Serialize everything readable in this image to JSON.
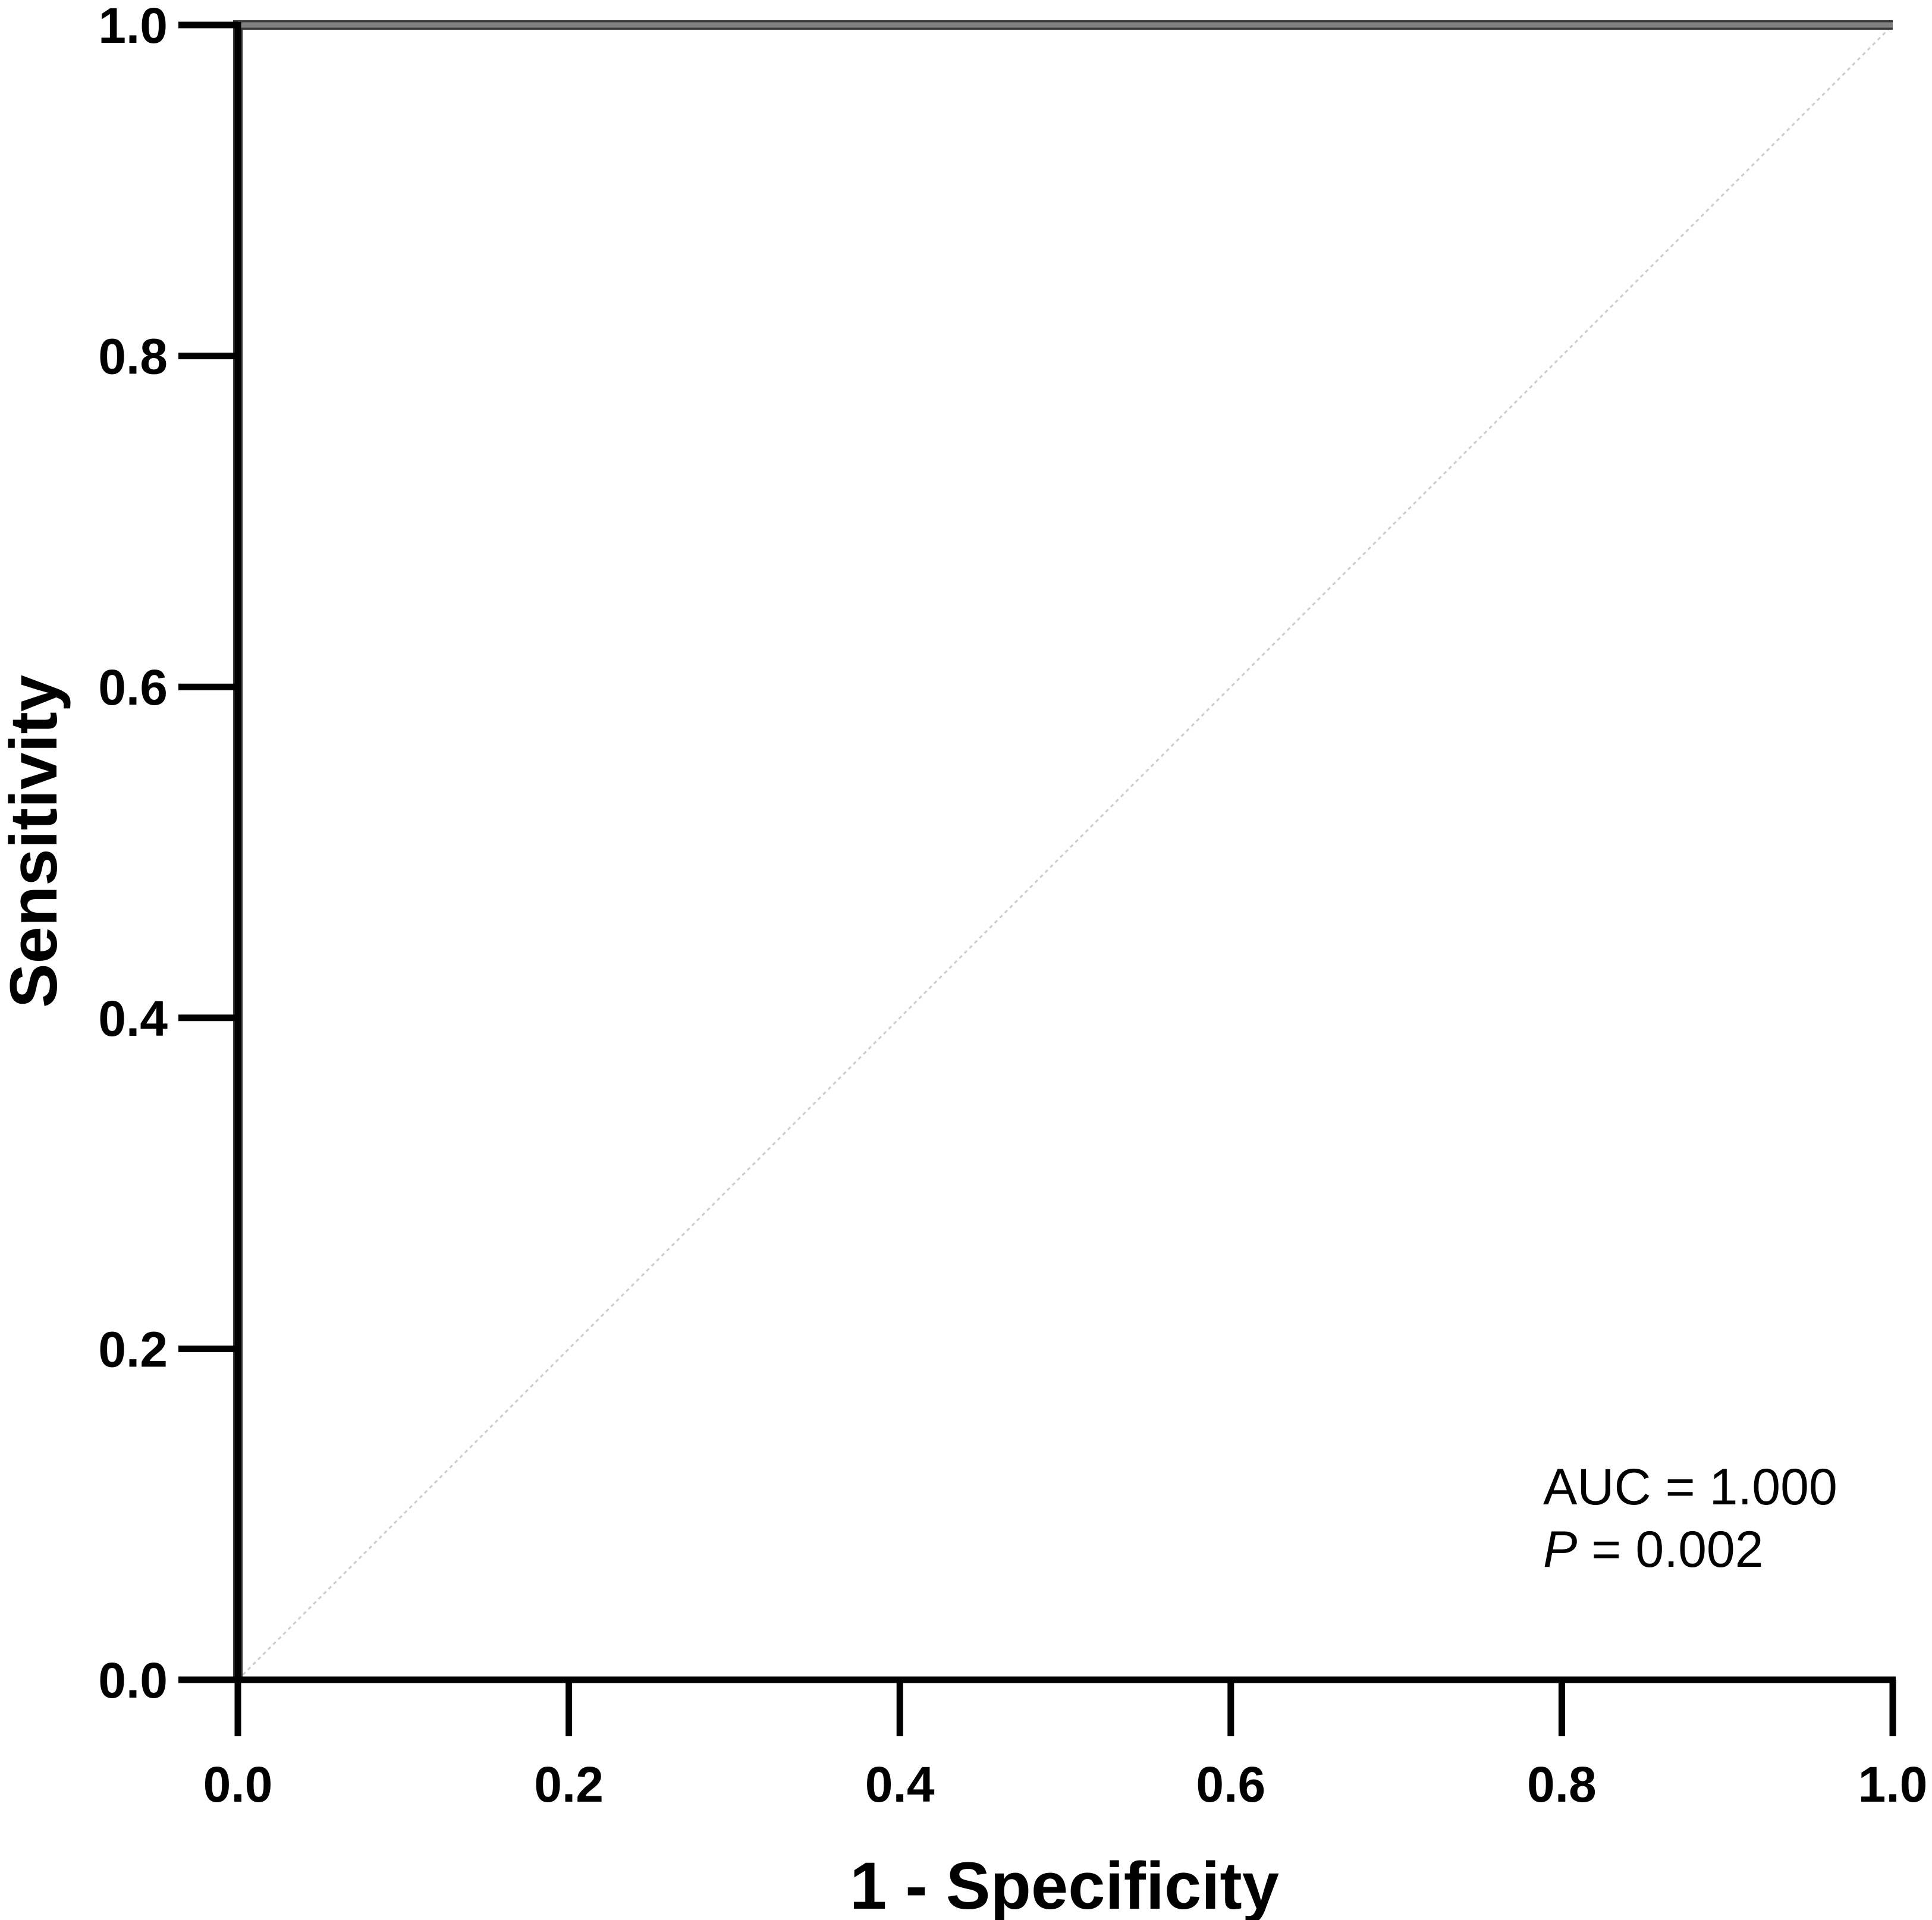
{
  "chart_data": {
    "type": "line",
    "xlabel": "1 - Specificity",
    "ylabel": "Sensitivity",
    "xlim": [
      0,
      1
    ],
    "ylim": [
      0,
      1
    ],
    "x_ticks": [
      "0.0",
      "0.2",
      "0.4",
      "0.6",
      "0.8",
      "1.0"
    ],
    "y_ticks": [
      "0.0",
      "0.2",
      "0.4",
      "0.6",
      "0.8",
      "1.0"
    ],
    "grid": false,
    "series": [
      {
        "role": "roc-curve",
        "color": "#808080",
        "x": [
          0,
          0,
          1
        ],
        "y": [
          0,
          1,
          1
        ]
      },
      {
        "role": "reference-line",
        "color": "#cccccc",
        "dashed": true,
        "x": [
          0,
          1
        ],
        "y": [
          0,
          1
        ]
      }
    ],
    "annotations": {
      "auc": "AUC = 1.000",
      "p_symbol": "P",
      "p_rest": " = 0.002"
    }
  }
}
